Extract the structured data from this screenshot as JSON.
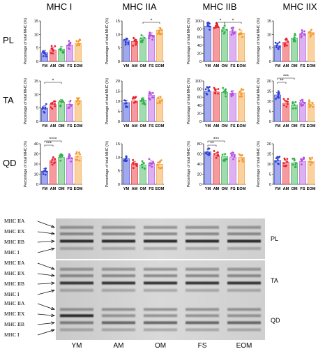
{
  "column_titles": [
    "MHC I",
    "MHC IIA",
    "MHC IIB",
    "MHC IIX"
  ],
  "row_labels": [
    "PL",
    "TA",
    "QD"
  ],
  "groups": [
    "YM",
    "AM",
    "OM",
    "FS",
    "EOM"
  ],
  "group_colors": [
    "#2f3fd6",
    "#e8212b",
    "#2fb04b",
    "#b34fe0",
    "#f39a2b"
  ],
  "ylabel": "Percentage of total MHC (%)",
  "chart_data": [
    {
      "row": "PL",
      "col": "MHC I",
      "type": "bar",
      "ylim": [
        0,
        15
      ],
      "ticks": [
        0,
        5,
        10,
        15
      ],
      "values": [
        3.2,
        4.2,
        4.6,
        6.1,
        6.7
      ],
      "sig": []
    },
    {
      "row": "PL",
      "col": "MHC IIA",
      "type": "bar",
      "ylim": [
        0,
        15
      ],
      "ticks": [
        0,
        5,
        10,
        15
      ],
      "values": [
        7.8,
        7.4,
        8.6,
        9.7,
        11.6
      ],
      "sig": [
        {
          "a": 2,
          "b": 4,
          "label": "*",
          "level": 1
        }
      ]
    },
    {
      "row": "PL",
      "col": "MHC IIB",
      "type": "bar",
      "ylim": [
        0,
        100
      ],
      "ticks": [
        0,
        20,
        40,
        60,
        80,
        100
      ],
      "values": [
        87,
        84,
        79,
        75,
        70
      ],
      "sig": [
        {
          "a": 1,
          "b": 2,
          "label": "*",
          "level": 1
        },
        {
          "a": 2,
          "b": 4,
          "label": "*",
          "level": 1
        }
      ]
    },
    {
      "row": "PL",
      "col": "MHC IIX",
      "type": "bar",
      "ylim": [
        0,
        15
      ],
      "ticks": [
        0,
        5,
        10,
        15
      ],
      "values": [
        5.8,
        7.1,
        8.7,
        10.3,
        10.7
      ],
      "sig": []
    },
    {
      "row": "TA",
      "col": "MHC I",
      "type": "bar",
      "ylim": [
        0,
        15
      ],
      "ticks": [
        0,
        5,
        10,
        15
      ],
      "values": [
        4.9,
        6.3,
        7.2,
        6.4,
        7.7
      ],
      "sig": [
        {
          "a": 0,
          "b": 2,
          "label": "*",
          "level": 1
        }
      ]
    },
    {
      "row": "TA",
      "col": "MHC IIA",
      "type": "bar",
      "ylim": [
        0,
        20
      ],
      "ticks": [
        0,
        5,
        10,
        15,
        20
      ],
      "values": [
        9.3,
        10.1,
        10.6,
        13.0,
        11.2
      ],
      "sig": []
    },
    {
      "row": "TA",
      "col": "MHC IIB",
      "type": "bar",
      "ylim": [
        0,
        100
      ],
      "ticks": [
        0,
        20,
        40,
        60,
        80,
        100
      ],
      "values": [
        75,
        73,
        72,
        70,
        71
      ],
      "sig": []
    },
    {
      "row": "TA",
      "col": "MHC IIX",
      "type": "bar",
      "ylim": [
        0,
        20
      ],
      "ticks": [
        0,
        5,
        10,
        15,
        20
      ],
      "values": [
        13.1,
        9.0,
        8.2,
        9.5,
        8.4
      ],
      "sig": [
        {
          "a": 0,
          "b": 1,
          "label": "**",
          "level": 1
        },
        {
          "a": 0,
          "b": 2,
          "label": "***",
          "level": 2
        }
      ]
    },
    {
      "row": "QD",
      "col": "MHC I",
      "type": "bar",
      "ylim": [
        0,
        40
      ],
      "ticks": [
        0,
        10,
        20,
        30,
        40
      ],
      "values": [
        13,
        23.5,
        26.5,
        26,
        27.5
      ],
      "sig": [
        {
          "a": 0,
          "b": 1,
          "label": "***",
          "level": 1
        },
        {
          "a": 0,
          "b": 2,
          "label": "****",
          "level": 2
        }
      ]
    },
    {
      "row": "QD",
      "col": "MHC IIA",
      "type": "bar",
      "ylim": [
        0,
        15
      ],
      "ticks": [
        0,
        5,
        10,
        15
      ],
      "values": [
        9.5,
        7.6,
        7.2,
        7.8,
        7.4
      ],
      "sig": []
    },
    {
      "row": "QD",
      "col": "MHC IIB",
      "type": "bar",
      "ylim": [
        0,
        80
      ],
      "ticks": [
        0,
        20,
        40,
        60,
        80
      ],
      "values": [
        64,
        57,
        55,
        54,
        53
      ],
      "sig": [
        {
          "a": 0,
          "b": 1,
          "label": "**",
          "level": 1
        },
        {
          "a": 0,
          "b": 2,
          "label": "***",
          "level": 2
        }
      ]
    },
    {
      "row": "QD",
      "col": "MHC IIX",
      "type": "bar",
      "ylim": [
        0,
        20
      ],
      "ticks": [
        0,
        5,
        10,
        15,
        20
      ],
      "values": [
        11.8,
        10.8,
        10.6,
        11.4,
        11.2
      ],
      "sig": []
    }
  ],
  "blots": {
    "mhc_labels": [
      "MHC IIA",
      "MHC IIX",
      "MHC IIB",
      "MHC I"
    ],
    "panel_labels": [
      "PL",
      "TA",
      "QD"
    ],
    "lane_labels": [
      "YM",
      "AM",
      "OM",
      "FS",
      "EOM"
    ]
  }
}
